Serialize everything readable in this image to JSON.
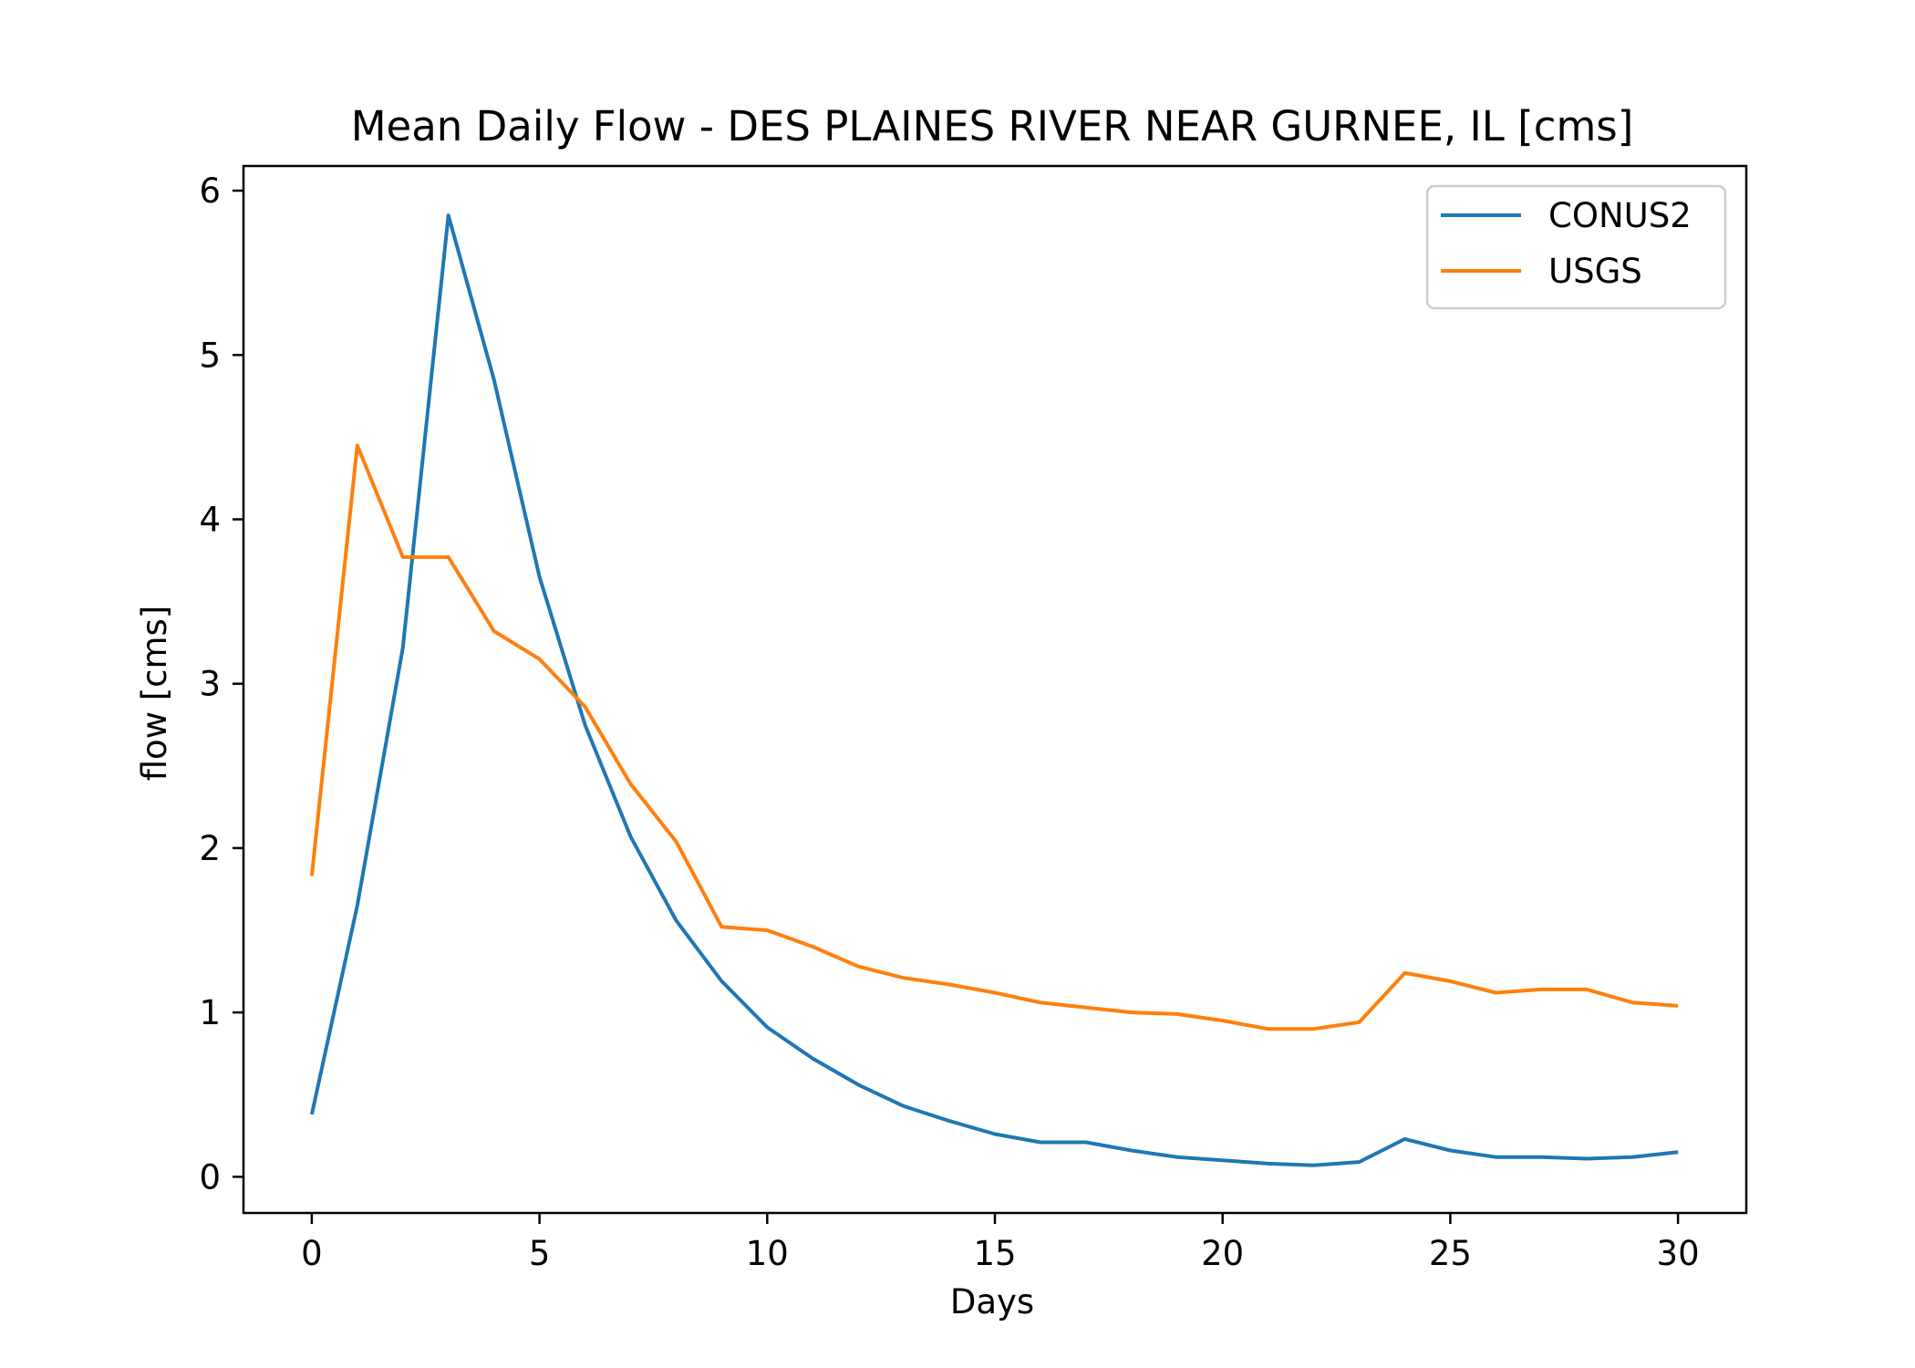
{
  "chart_data": {
    "type": "line",
    "title": "Mean Daily Flow - DES PLAINES RIVER NEAR GURNEE, IL [cms]",
    "xlabel": "Days",
    "ylabel": "flow [cms]",
    "xlim": [
      -1.5,
      31.5
    ],
    "ylim": [
      -0.22,
      6.15
    ],
    "xticks": [
      0,
      5,
      10,
      15,
      20,
      25,
      30
    ],
    "yticks": [
      0,
      1,
      2,
      3,
      4,
      5,
      6
    ],
    "grid": false,
    "legend_position": "top-right",
    "x": [
      0,
      1,
      2,
      3,
      4,
      5,
      6,
      7,
      8,
      9,
      10,
      11,
      12,
      13,
      14,
      15,
      16,
      17,
      18,
      19,
      20,
      21,
      22,
      23,
      24,
      25,
      26,
      27,
      28,
      29,
      30
    ],
    "series": [
      {
        "name": "CONUS2",
        "color": "#1f77b4",
        "values": [
          0.38,
          1.65,
          3.22,
          5.85,
          4.85,
          3.65,
          2.75,
          2.07,
          1.56,
          1.19,
          0.91,
          0.72,
          0.56,
          0.43,
          0.34,
          0.26,
          0.21,
          0.21,
          0.16,
          0.12,
          0.1,
          0.08,
          0.07,
          0.09,
          0.23,
          0.16,
          0.12,
          0.12,
          0.11,
          0.12,
          0.15
        ]
      },
      {
        "name": "USGS",
        "color": "#ff7f0e",
        "values": [
          1.83,
          4.45,
          3.77,
          3.77,
          3.32,
          3.15,
          2.86,
          2.39,
          2.04,
          1.52,
          1.5,
          1.4,
          1.28,
          1.21,
          1.17,
          1.12,
          1.06,
          1.03,
          1.0,
          0.99,
          0.95,
          0.9,
          0.9,
          0.94,
          1.24,
          1.19,
          1.12,
          1.14,
          1.14,
          1.06,
          1.04
        ]
      }
    ]
  }
}
